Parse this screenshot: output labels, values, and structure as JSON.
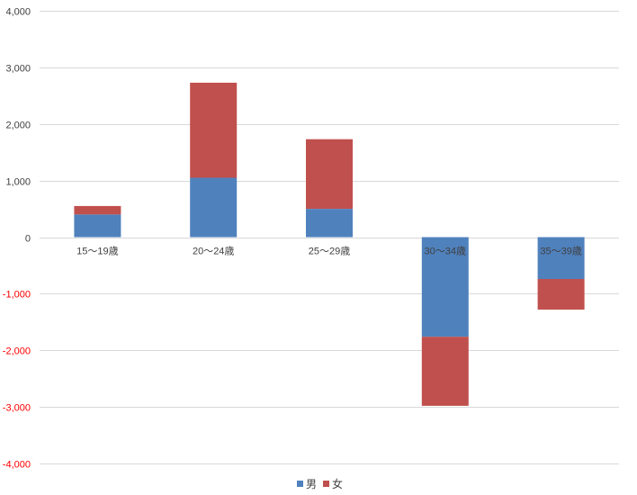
{
  "chart_data": {
    "type": "bar",
    "stacked": true,
    "categories": [
      "15～19歳",
      "20～24歳",
      "25～29歳",
      "30～34歳",
      "35～39歳"
    ],
    "series": [
      {
        "name": "男",
        "color": "#4f81bd",
        "values": [
          400,
          1050,
          500,
          -1760,
          -740
        ]
      },
      {
        "name": "女",
        "color": "#c0504d",
        "values": [
          150,
          1680,
          1230,
          -1220,
          -540
        ]
      }
    ],
    "ylim": [
      -4000,
      4000
    ],
    "yticks": [
      4000,
      3000,
      2000,
      1000,
      0,
      -1000,
      -2000,
      -3000,
      -4000
    ],
    "ytick_labels": [
      "4,000",
      "3,000",
      "2,000",
      "1,000",
      "0",
      "-1,000",
      "-2,000",
      "-3,000",
      "-4,000"
    ],
    "negative_label_color": "#ff0000",
    "positive_label_color": "#404040",
    "grid": true,
    "legend_position": "bottom",
    "title": "",
    "xlabel": "",
    "ylabel": ""
  }
}
